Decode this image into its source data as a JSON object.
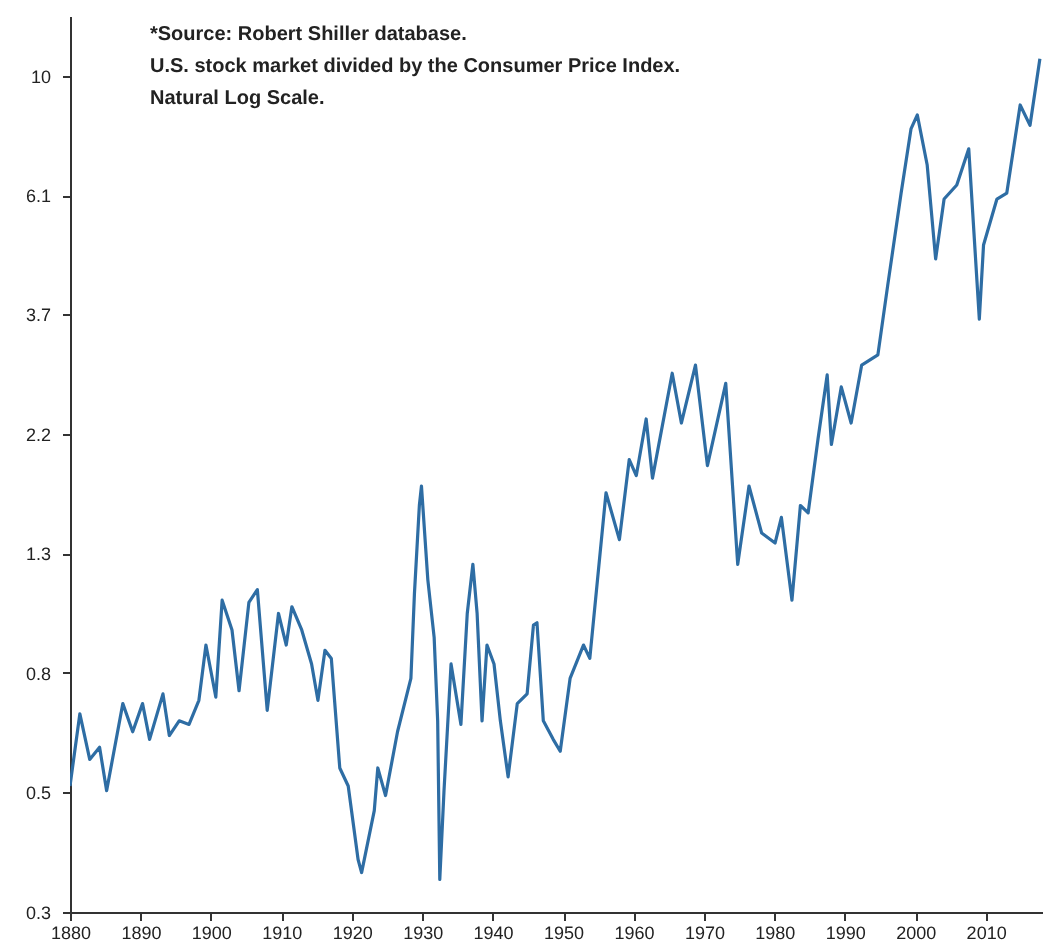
{
  "chart_data": {
    "type": "line",
    "annotations": [
      "*Source: Robert Shiller database.",
      "U.S. stock market divided by the Consumer Price Index.",
      "Natural Log Scale."
    ],
    "log": "y",
    "grid": false,
    "xlim": [
      1880,
      2018
    ],
    "ylim": [
      0.301,
      12.8
    ],
    "xticks": [
      1880,
      1890,
      1900,
      1910,
      1920,
      1930,
      1940,
      1950,
      1960,
      1970,
      1980,
      1990,
      2000,
      2010
    ],
    "yticks": [
      {
        "value": 0.301,
        "label": "0.3"
      },
      {
        "value": 0.497,
        "label": "0.5"
      },
      {
        "value": 0.819,
        "label": "0.8"
      },
      {
        "value": 1.35,
        "label": "1.3"
      },
      {
        "value": 2.23,
        "label": "2.2"
      },
      {
        "value": 3.67,
        "label": "3.7"
      },
      {
        "value": 6.05,
        "label": "6.1"
      },
      {
        "value": 9.97,
        "label": "10"
      }
    ],
    "x": [
      1880,
      1881.4,
      1882.8,
      1884.2,
      1885.2,
      1887.5,
      1888.9,
      1890.3,
      1891.3,
      1893.2,
      1894.1,
      1895.5,
      1896.9,
      1898.3,
      1899.3,
      1900.7,
      1901.6,
      1903,
      1904,
      1905.4,
      1906.6,
      1908,
      1909.6,
      1910.7,
      1911.5,
      1912.9,
      1914.3,
      1915.2,
      1916.2,
      1917.1,
      1918.3,
      1919.5,
      1920.9,
      1921.4,
      1923.2,
      1923.7,
      1924.8,
      1926.5,
      1928.4,
      1928.9,
      1929.6,
      1929.9,
      1930.8,
      1931.7,
      1932.2,
      1932.5,
      1933.1,
      1934.1,
      1935.5,
      1936.4,
      1937.2,
      1937.8,
      1938.5,
      1939.2,
      1940.2,
      1941.1,
      1942.2,
      1943.5,
      1944.9,
      1945.8,
      1946.3,
      1947.2,
      1948.6,
      1949.6,
      1951,
      1952.9,
      1953.8,
      1956.1,
      1958,
      1959.4,
      1960.4,
      1961.8,
      1962.7,
      1965.5,
      1966.8,
      1968.8,
      1970.5,
      1973.1,
      1974.8,
      1976.4,
      1978.2,
      1980.1,
      1981,
      1982.5,
      1983.7,
      1984.8,
      1986.2,
      1987.5,
      1988.1,
      1989.5,
      1990.9,
      1992.4,
      1994.7,
      1996.1,
      1998,
      1999.4,
      2000.3,
      2001.7,
      2002.9,
      2004.1,
      2005.9,
      2007.6,
      2009.1,
      2009.7,
      2011.6,
      2013,
      2014.9,
      2016.3,
      2017.7
    ],
    "series": [
      {
        "color": "#2e6da4",
        "values": [
          0.51,
          0.69,
          0.57,
          0.6,
          0.5,
          0.72,
          0.64,
          0.72,
          0.62,
          0.75,
          0.63,
          0.67,
          0.66,
          0.73,
          0.92,
          0.74,
          1.11,
          0.98,
          0.76,
          1.1,
          1.16,
          0.7,
          1.05,
          0.92,
          1.08,
          0.98,
          0.85,
          0.73,
          0.9,
          0.87,
          0.55,
          0.51,
          0.375,
          0.355,
          0.46,
          0.55,
          0.49,
          0.64,
          0.8,
          1.14,
          1.65,
          1.79,
          1.21,
          0.95,
          0.67,
          0.345,
          0.5,
          0.85,
          0.66,
          1.05,
          1.29,
          1.05,
          0.67,
          0.92,
          0.85,
          0.67,
          0.53,
          0.72,
          0.75,
          1.0,
          1.01,
          0.67,
          0.62,
          0.59,
          0.8,
          0.92,
          0.87,
          1.74,
          1.43,
          2.0,
          1.87,
          2.37,
          1.85,
          2.87,
          2.33,
          2.97,
          1.95,
          2.75,
          1.29,
          1.79,
          1.47,
          1.41,
          1.57,
          1.11,
          1.65,
          1.6,
          2.18,
          2.85,
          2.13,
          2.71,
          2.33,
          2.97,
          3.1,
          4.15,
          6.1,
          7.98,
          8.46,
          6.86,
          4.63,
          5.95,
          6.31,
          7.34,
          3.6,
          4.91,
          5.95,
          6.1,
          8.82,
          8.1,
          10.7
        ]
      }
    ]
  }
}
